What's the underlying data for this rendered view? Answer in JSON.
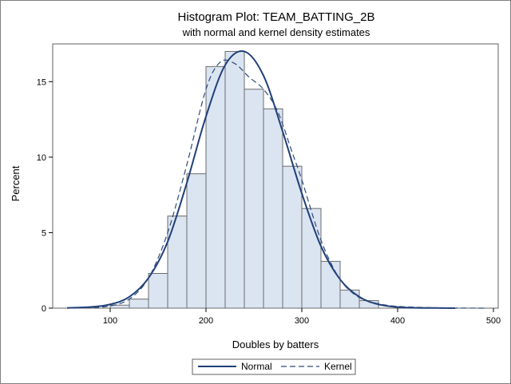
{
  "chart_data": {
    "type": "bar",
    "title": "Histogram Plot: TEAM_BATTING_2B",
    "subtitle": "with normal and kernel density estimates",
    "xlabel": "Doubles by batters",
    "ylabel": "Percent",
    "xlim": [
      40,
      505
    ],
    "ylim": [
      0,
      17.5
    ],
    "xticks": [
      "100",
      "200",
      "300",
      "400",
      "500"
    ],
    "yticks": [
      "0",
      "5",
      "10",
      "15"
    ],
    "bins": [
      {
        "x0": 100,
        "x1": 120,
        "value": 0.2
      },
      {
        "x0": 120,
        "x1": 140,
        "value": 0.6
      },
      {
        "x0": 140,
        "x1": 160,
        "value": 2.3
      },
      {
        "x0": 160,
        "x1": 180,
        "value": 6.1
      },
      {
        "x0": 180,
        "x1": 200,
        "value": 8.9
      },
      {
        "x0": 200,
        "x1": 220,
        "value": 16.0
      },
      {
        "x0": 220,
        "x1": 240,
        "value": 17.0
      },
      {
        "x0": 240,
        "x1": 260,
        "value": 14.5
      },
      {
        "x0": 260,
        "x1": 280,
        "value": 13.2
      },
      {
        "x0": 280,
        "x1": 300,
        "value": 9.4
      },
      {
        "x0": 300,
        "x1": 320,
        "value": 6.6
      },
      {
        "x0": 320,
        "x1": 340,
        "value": 3.1
      },
      {
        "x0": 340,
        "x1": 360,
        "value": 1.2
      },
      {
        "x0": 360,
        "x1": 380,
        "value": 0.5
      }
    ],
    "series": [
      {
        "name": "Normal",
        "style": "solid",
        "color": "#1f3f7a",
        "x": [
          55,
          80,
          100,
          120,
          140,
          160,
          180,
          200,
          220,
          240,
          260,
          280,
          300,
          320,
          340,
          360,
          380,
          400,
          420,
          440,
          460
        ],
        "y": [
          0.02,
          0.08,
          0.25,
          0.75,
          2.0,
          4.4,
          8.3,
          12.7,
          16.1,
          17.0,
          15.4,
          11.7,
          7.6,
          4.1,
          1.9,
          0.75,
          0.25,
          0.07,
          0.02,
          0.01,
          0.0
        ]
      },
      {
        "name": "Kernel",
        "style": "dashed",
        "color": "#2c4a7a",
        "x": [
          55,
          80,
          100,
          120,
          140,
          160,
          180,
          200,
          215,
          230,
          245,
          260,
          275,
          290,
          300,
          320,
          340,
          360,
          380,
          400,
          430,
          460,
          490
        ],
        "y": [
          0.0,
          0.03,
          0.15,
          0.6,
          2.0,
          5.0,
          9.5,
          14.5,
          16.3,
          16.2,
          15.3,
          14.5,
          13.0,
          10.3,
          8.5,
          4.5,
          1.9,
          0.7,
          0.3,
          0.12,
          0.04,
          0.01,
          0.0
        ]
      }
    ],
    "legend": {
      "placement": "bottom"
    },
    "colors": {
      "bar_fill": "#dbe4f1",
      "bar_stroke": "#6b6b6b"
    }
  }
}
